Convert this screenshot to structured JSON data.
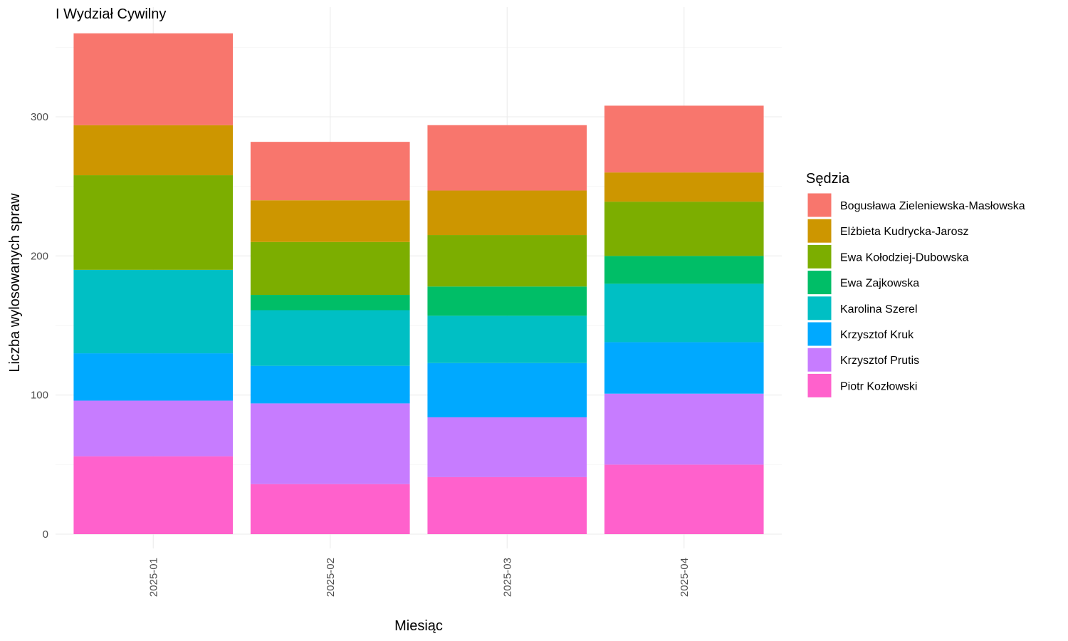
{
  "chart_data": {
    "type": "bar",
    "stacked": true,
    "title": "I Wydział Cywilny",
    "xlabel": "Miesiąc",
    "ylabel": "Liczba wylosowanych spraw",
    "ylim": [
      0,
      370
    ],
    "y_ticks": [
      0,
      100,
      200,
      300
    ],
    "grid": true,
    "legend_title": "Sędzia",
    "legend_position": "right",
    "categories": [
      "2025-01",
      "2025-02",
      "2025-03",
      "2025-04"
    ],
    "series": [
      {
        "name": "Piotr Kozłowski",
        "color": "#FF61CC",
        "values": [
          56,
          36,
          41,
          50
        ]
      },
      {
        "name": "Krzysztof Prutis",
        "color": "#C77CFF",
        "values": [
          40,
          58,
          43,
          51
        ]
      },
      {
        "name": "Krzysztof Kruk",
        "color": "#00A9FF",
        "values": [
          34,
          27,
          39,
          37
        ]
      },
      {
        "name": "Karolina Szerel",
        "color": "#00BFC4",
        "values": [
          60,
          40,
          34,
          42
        ]
      },
      {
        "name": "Ewa Zajkowska",
        "color": "#00BE67",
        "values": [
          0,
          11,
          21,
          20
        ]
      },
      {
        "name": "Ewa Kołodziej-Dubowska",
        "color": "#7CAE00",
        "values": [
          68,
          38,
          37,
          39
        ]
      },
      {
        "name": "Elżbieta Kudrycka-Jarosz",
        "color": "#CD9600",
        "values": [
          36,
          30,
          32,
          21
        ]
      },
      {
        "name": "Bogusława Zieleniewska-Masłowska",
        "color": "#F8766D",
        "values": [
          66,
          42,
          47,
          48
        ]
      }
    ],
    "legend_order": [
      "Bogusława Zieleniewska-Masłowska",
      "Elżbieta Kudrycka-Jarosz",
      "Ewa Kołodziej-Dubowska",
      "Ewa Zajkowska",
      "Karolina Szerel",
      "Krzysztof Kruk",
      "Krzysztof Prutis",
      "Piotr Kozłowski"
    ]
  }
}
